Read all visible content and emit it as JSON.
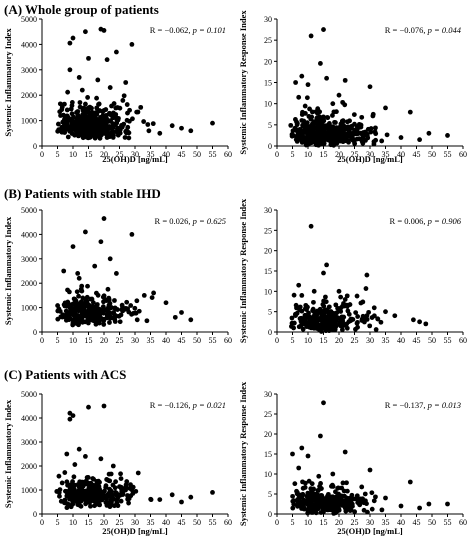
{
  "sections": [
    {
      "label": "(A) Whole group of patients"
    },
    {
      "label": "(B) Patients with stable IHD"
    },
    {
      "label": "(C) Patients with ACS"
    }
  ],
  "chart_data": [
    {
      "type": "scatter",
      "panel": "A-left",
      "xlabel": "25(OH)D [ng/mL]",
      "ylabel": "Systemic Inflammatory Index",
      "xlim": [
        0,
        60
      ],
      "ylim": [
        0,
        5000
      ],
      "xticks": [
        "0",
        "5",
        "10",
        "15",
        "20",
        "25",
        "30",
        "35",
        "40",
        "45",
        "50",
        "55",
        "60"
      ],
      "yticks": [
        "0",
        "1000",
        "2000",
        "3000",
        "4000",
        "5000"
      ],
      "stat_r": "R = −0.062,",
      "stat_p": "p = 0.101",
      "outliers": [
        [
          9,
          4050
        ],
        [
          10,
          4250
        ],
        [
          14,
          4500
        ],
        [
          15,
          3450
        ],
        [
          19,
          4600
        ],
        [
          20,
          4550
        ],
        [
          21,
          3400
        ],
        [
          24,
          3700
        ],
        [
          29,
          4000
        ],
        [
          9,
          3000
        ],
        [
          12,
          2700
        ],
        [
          18,
          2600
        ],
        [
          27,
          2500
        ],
        [
          13,
          2200
        ],
        [
          22,
          2300
        ],
        [
          55,
          900
        ],
        [
          48,
          600
        ],
        [
          45,
          700
        ],
        [
          42,
          800
        ],
        [
          38,
          500
        ]
      ]
    },
    {
      "type": "scatter",
      "panel": "A-right",
      "xlabel": "25(OH)D [ng/mL]",
      "ylabel": "Systemic Inflammatory Response Index",
      "xlim": [
        0,
        60
      ],
      "ylim": [
        0,
        30
      ],
      "xticks": [
        "0",
        "5",
        "10",
        "15",
        "20",
        "25",
        "30",
        "35",
        "40",
        "45",
        "50",
        "55",
        "60"
      ],
      "yticks": [
        "0",
        "5",
        "10",
        "15",
        "20",
        "25",
        "30"
      ],
      "stat_r": "R = −0.076,",
      "stat_p": "p = 0.044",
      "outliers": [
        [
          15,
          27.5
        ],
        [
          11,
          26
        ],
        [
          14,
          19.5
        ],
        [
          16,
          16
        ],
        [
          8,
          16.5
        ],
        [
          10,
          14.5
        ],
        [
          7,
          11.5
        ],
        [
          20,
          12
        ],
        [
          22,
          15.5
        ],
        [
          30,
          14
        ],
        [
          18,
          10
        ],
        [
          6,
          15
        ],
        [
          43,
          8
        ],
        [
          35,
          9
        ],
        [
          55,
          2.5
        ],
        [
          49,
          3
        ],
        [
          46,
          1.5
        ],
        [
          40,
          2
        ]
      ]
    },
    {
      "type": "scatter",
      "panel": "B-left",
      "xlabel": "",
      "ylabel": "Systemic Inflammatory Index",
      "xlim": [
        0,
        60
      ],
      "ylim": [
        0,
        5000
      ],
      "xticks": [
        "0",
        "5",
        "10",
        "15",
        "20",
        "25",
        "30",
        "35",
        "40",
        "45",
        "50",
        "55",
        "60"
      ],
      "yticks": [
        "0",
        "1000",
        "2000",
        "3000",
        "4000",
        "5000"
      ],
      "stat_r": "R = 0.026,",
      "stat_p": "p = 0.625",
      "outliers": [
        [
          20,
          4650
        ],
        [
          14,
          4100
        ],
        [
          29,
          4000
        ],
        [
          10,
          3500
        ],
        [
          19,
          3700
        ],
        [
          22,
          3000
        ],
        [
          7,
          2500
        ],
        [
          17,
          2700
        ],
        [
          24,
          2400
        ],
        [
          12,
          2200
        ],
        [
          36,
          1600
        ],
        [
          45,
          800
        ],
        [
          40,
          1200
        ],
        [
          33,
          1500
        ],
        [
          48,
          500
        ],
        [
          43,
          600
        ]
      ]
    },
    {
      "type": "scatter",
      "panel": "B-right",
      "xlabel": "",
      "ylabel": "Systemic Inflammatory Response Index",
      "xlim": [
        0,
        60
      ],
      "ylim": [
        0,
        30
      ],
      "xticks": [
        "0",
        "5",
        "10",
        "15",
        "20",
        "25",
        "30",
        "35",
        "40",
        "45",
        "50",
        "55",
        "60"
      ],
      "yticks": [
        "0",
        "5",
        "10",
        "15",
        "20",
        "25",
        "30"
      ],
      "stat_r": "R = 0.006,",
      "stat_p": "p = 0.906",
      "outliers": [
        [
          11,
          26
        ],
        [
          16,
          16.5
        ],
        [
          15,
          14.5
        ],
        [
          29,
          14
        ],
        [
          7,
          11.5
        ],
        [
          20,
          10
        ],
        [
          12,
          10
        ],
        [
          8,
          9
        ],
        [
          22,
          8
        ],
        [
          35,
          5
        ],
        [
          38,
          4
        ],
        [
          44,
          3
        ],
        [
          46,
          2.5
        ],
        [
          48,
          2
        ]
      ]
    },
    {
      "type": "scatter",
      "panel": "C-left",
      "xlabel": "25(OH)D [ng/mL]",
      "ylabel": "Systemic Inflammatory Index",
      "xlim": [
        0,
        60
      ],
      "ylim": [
        0,
        5000
      ],
      "xticks": [
        "0",
        "5",
        "10",
        "15",
        "20",
        "25",
        "30",
        "35",
        "40",
        "45",
        "50",
        "55",
        "60"
      ],
      "yticks": [
        "0",
        "1000",
        "2000",
        "3000",
        "4000",
        "5000"
      ],
      "stat_r": "R = −0.126,",
      "stat_p": "p = 0.021",
      "outliers": [
        [
          9,
          4200
        ],
        [
          9,
          3950
        ],
        [
          10,
          4100
        ],
        [
          15,
          4450
        ],
        [
          20,
          4500
        ],
        [
          12,
          2700
        ],
        [
          8,
          2500
        ],
        [
          14,
          2400
        ],
        [
          19,
          2300
        ],
        [
          23,
          2000
        ],
        [
          55,
          900
        ],
        [
          48,
          700
        ],
        [
          45,
          500
        ],
        [
          42,
          800
        ],
        [
          38,
          600
        ]
      ]
    },
    {
      "type": "scatter",
      "panel": "C-right",
      "xlabel": "25(OH)D [ng/mL]",
      "ylabel": "Systemic Inflammatory Response Index",
      "xlim": [
        0,
        60
      ],
      "ylim": [
        0,
        30
      ],
      "xticks": [
        "0",
        "5",
        "10",
        "15",
        "20",
        "25",
        "30",
        "35",
        "40",
        "45",
        "50",
        "55",
        "60"
      ],
      "yticks": [
        "0",
        "5",
        "10",
        "15",
        "20",
        "25",
        "30"
      ],
      "stat_r": "R = −0.137,",
      "stat_p": "p = 0.013",
      "outliers": [
        [
          15,
          27.8
        ],
        [
          14,
          19.5
        ],
        [
          5,
          15
        ],
        [
          8,
          16.5
        ],
        [
          10,
          14.5
        ],
        [
          7,
          11.5
        ],
        [
          22,
          15.5
        ],
        [
          30,
          11
        ],
        [
          18,
          10
        ],
        [
          43,
          8
        ],
        [
          35,
          4
        ],
        [
          55,
          2.5
        ],
        [
          49,
          2.5
        ],
        [
          46,
          1.5
        ],
        [
          40,
          2
        ]
      ]
    }
  ]
}
